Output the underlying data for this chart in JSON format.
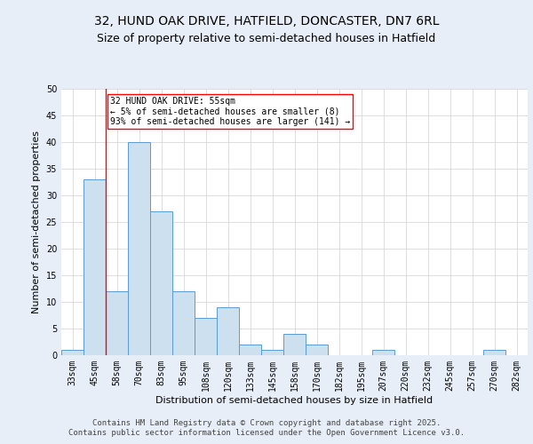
{
  "title_line1": "32, HUND OAK DRIVE, HATFIELD, DONCASTER, DN7 6RL",
  "title_line2": "Size of property relative to semi-detached houses in Hatfield",
  "xlabel": "Distribution of semi-detached houses by size in Hatfield",
  "ylabel": "Number of semi-detached properties",
  "footer_line1": "Contains HM Land Registry data © Crown copyright and database right 2025.",
  "footer_line2": "Contains public sector information licensed under the Open Government Licence v3.0.",
  "annotation_line1": "32 HUND OAK DRIVE: 55sqm",
  "annotation_line2": "← 5% of semi-detached houses are smaller (8)",
  "annotation_line3": "93% of semi-detached houses are larger (141) →",
  "bar_labels": [
    "33sqm",
    "45sqm",
    "58sqm",
    "70sqm",
    "83sqm",
    "95sqm",
    "108sqm",
    "120sqm",
    "133sqm",
    "145sqm",
    "158sqm",
    "170sqm",
    "182sqm",
    "195sqm",
    "207sqm",
    "220sqm",
    "232sqm",
    "245sqm",
    "257sqm",
    "270sqm",
    "282sqm"
  ],
  "bar_values": [
    1,
    33,
    12,
    40,
    27,
    12,
    7,
    9,
    2,
    1,
    4,
    2,
    0,
    0,
    1,
    0,
    0,
    0,
    0,
    1,
    0
  ],
  "bar_color": "#cce0ef",
  "bar_edge_color": "#5b9bd5",
  "property_line_x": 1.5,
  "ylim": [
    0,
    50
  ],
  "yticks": [
    0,
    5,
    10,
    15,
    20,
    25,
    30,
    35,
    40,
    45,
    50
  ],
  "bg_color": "#e8eef8",
  "plot_bg_color": "#ffffff",
  "grid_color": "#d0d0d0",
  "title_fontsize": 10,
  "subtitle_fontsize": 9,
  "axis_label_fontsize": 8,
  "tick_fontsize": 7,
  "annotation_fontsize": 7,
  "footer_fontsize": 6.5
}
